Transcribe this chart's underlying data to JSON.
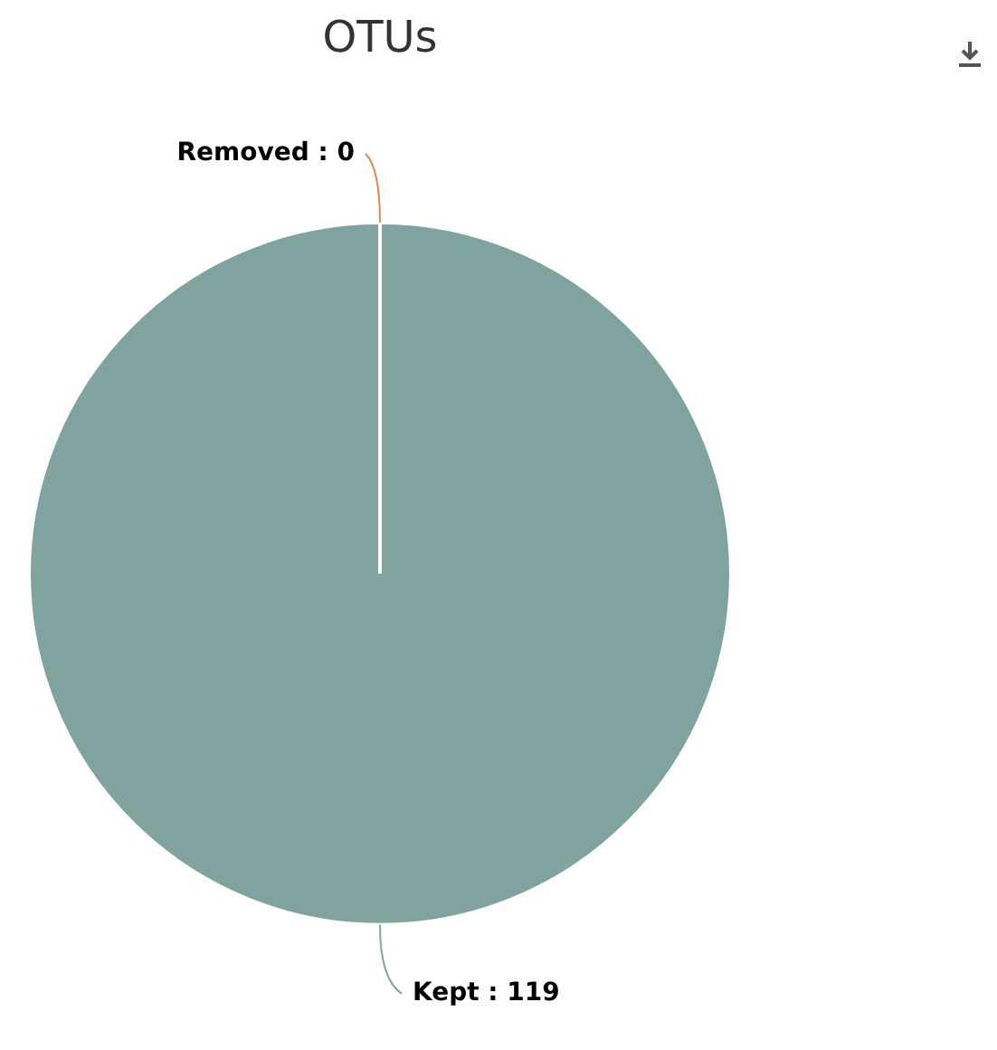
{
  "chart_data": {
    "type": "pie",
    "title": "OTUs",
    "categories": [
      "Removed",
      "Kept"
    ],
    "values": [
      0,
      119
    ],
    "colors": [
      "#d9894f",
      "#80a3a0"
    ],
    "value_labels": [
      ": 0",
      ": 119"
    ],
    "legend": false
  }
}
